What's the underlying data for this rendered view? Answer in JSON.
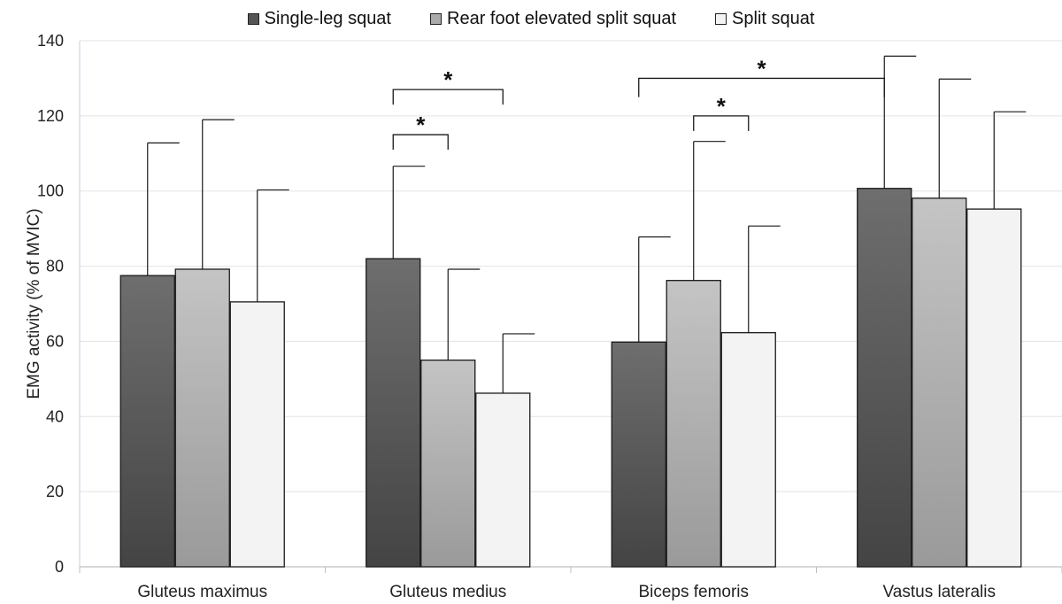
{
  "chart_data": {
    "type": "bar",
    "ylabel": "EMG activity (% of MVIC)",
    "xlabel": "",
    "ylim": [
      0,
      140
    ],
    "yticks": [
      0,
      20,
      40,
      60,
      80,
      100,
      120,
      140
    ],
    "grid": true,
    "legend_position": "top",
    "categories": [
      "Gluteus maximus",
      "Gluteus medius",
      "Biceps femoris",
      "Vastus lateralis"
    ],
    "series": [
      {
        "name": "Single-leg squat",
        "values": [
          77.5,
          82,
          59.8,
          100.7
        ],
        "error_upper": [
          112.8,
          106.6,
          87.8,
          135.9
        ],
        "colors": [
          "#444444",
          "#6e6e6e"
        ]
      },
      {
        "name": "Rear foot elevated split squat",
        "values": [
          79.2,
          55,
          76.2,
          98.1
        ],
        "error_upper": [
          119,
          79.2,
          113.2,
          129.8
        ],
        "colors": [
          "#9a9a9a",
          "#c4c4c4"
        ]
      },
      {
        "name": "Split squat",
        "values": [
          70.5,
          46.2,
          62.3,
          95.2
        ],
        "error_upper": [
          100.3,
          62,
          90.7,
          121.1
        ],
        "colors": [
          "#f3f3f3",
          "#f3f3f3"
        ]
      }
    ],
    "annotations": [
      {
        "label": "*",
        "from": [
          1,
          0
        ],
        "to": [
          1,
          1
        ],
        "y": 115,
        "left_drop": 4,
        "right_drop": 4
      },
      {
        "label": "*",
        "from": [
          1,
          0
        ],
        "to": [
          1,
          2
        ],
        "y": 127,
        "left_drop": 4,
        "right_drop": 4
      },
      {
        "label": "*",
        "from": [
          2,
          1
        ],
        "to": [
          2,
          2
        ],
        "y": 120,
        "left_drop": 4,
        "right_drop": 4
      },
      {
        "label": "*",
        "from": [
          2,
          0
        ],
        "to": [
          3,
          0
        ],
        "y": 130,
        "left_drop": 5,
        "right_drop": 5
      }
    ]
  }
}
